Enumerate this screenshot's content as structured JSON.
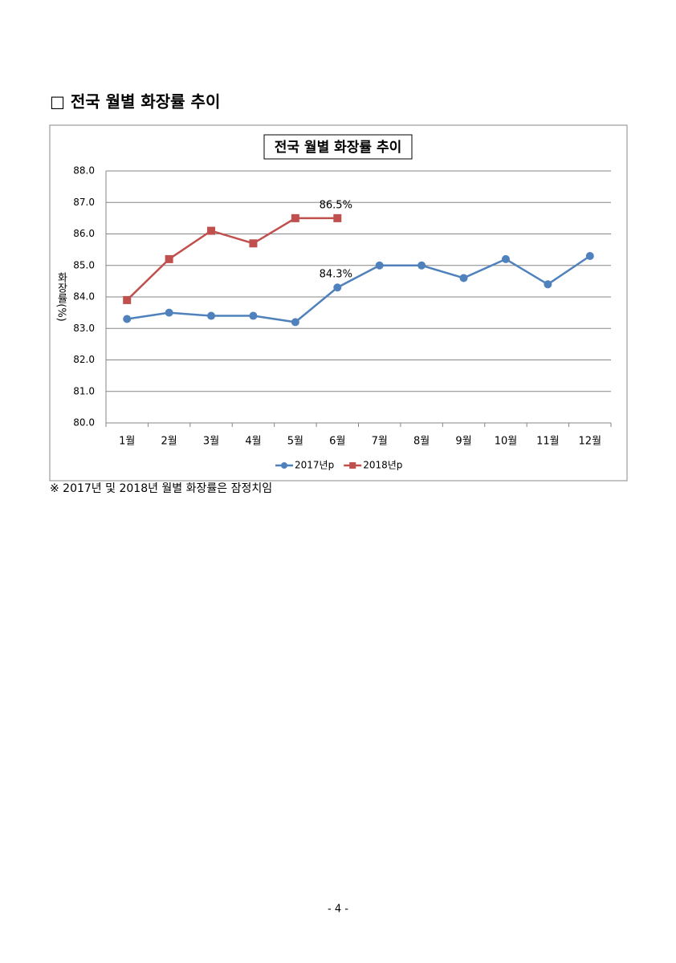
{
  "heading": "□ 전국 월별 화장률 추이",
  "chart_data": {
    "type": "line",
    "title": "전국 월별 화장률 추이",
    "y_label": "화장률(%)",
    "categories": [
      "1월",
      "2월",
      "3월",
      "4월",
      "5월",
      "6월",
      "7월",
      "8월",
      "9월",
      "10월",
      "11월",
      "12월"
    ],
    "series": [
      {
        "name": "2017년p",
        "color": "#4f81bd",
        "marker": "circle",
        "values": [
          83.3,
          83.5,
          83.4,
          83.4,
          83.2,
          84.3,
          85.0,
          85.0,
          84.6,
          85.2,
          84.4,
          85.3
        ],
        "value_labels": [
          null,
          null,
          null,
          null,
          null,
          "84.3%",
          null,
          null,
          null,
          null,
          null,
          null
        ]
      },
      {
        "name": "2018년p",
        "color": "#c0504d",
        "marker": "square",
        "values": [
          83.9,
          85.2,
          86.1,
          85.7,
          86.5,
          86.5,
          null,
          null,
          null,
          null,
          null,
          null
        ],
        "value_labels": [
          null,
          null,
          null,
          null,
          null,
          "86.5%",
          null,
          null,
          null,
          null,
          null,
          null
        ]
      }
    ],
    "ylim": [
      80,
      88
    ],
    "yticks": [
      {
        "value": 80,
        "label": "80.0"
      },
      {
        "value": 81,
        "label": "81.0"
      },
      {
        "value": 82,
        "label": "82.0"
      },
      {
        "value": 83,
        "label": "83.0"
      },
      {
        "value": 84,
        "label": "84.0"
      },
      {
        "value": 85,
        "label": "85.0"
      },
      {
        "value": 86,
        "label": "86.0"
      },
      {
        "value": 87,
        "label": "87.0"
      },
      {
        "value": 88,
        "label": "88.0"
      }
    ],
    "grid": true,
    "legend": "bottom"
  },
  "note": "※ 2017년 및 2018년 월별 화장률은 잠정치임",
  "page_number": "- 4 -"
}
